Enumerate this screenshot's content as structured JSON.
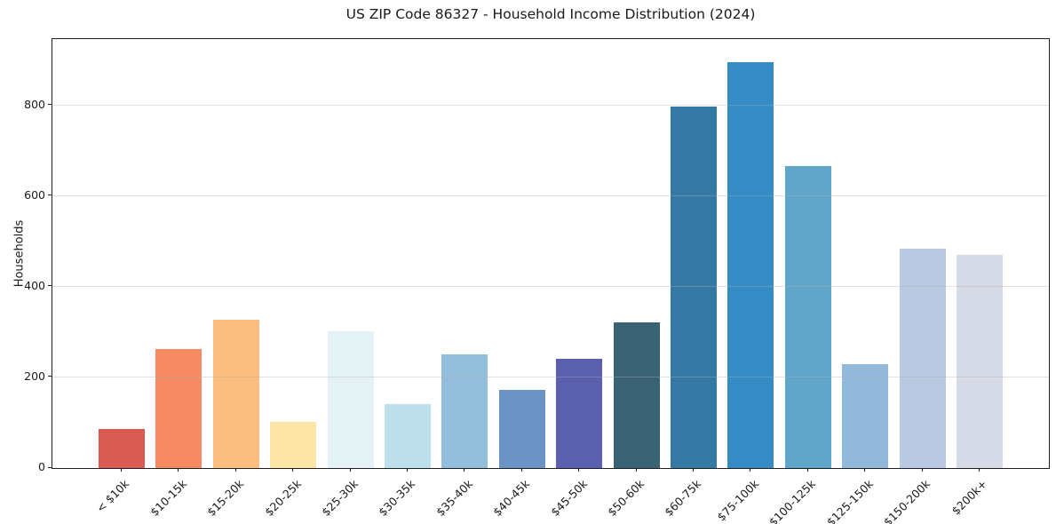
{
  "title": "US ZIP Code 86327 - Household Income Distribution (2024)",
  "chart_data": {
    "type": "bar",
    "title": "US ZIP Code 86327 - Household Income Distribution (2024)",
    "xlabel": "",
    "ylabel": "Households",
    "ylim": [
      0,
      946
    ],
    "yticks": [
      0,
      200,
      400,
      600,
      800
    ],
    "grid": true,
    "legend": "none",
    "categories": [
      "< $10k",
      "$10-15k",
      "$15-20k",
      "$20-25k",
      "$25-30k",
      "$30-35k",
      "$35-40k",
      "$40-45k",
      "$45-50k",
      "$50-60k",
      "$60-75k",
      "$75-100k",
      "$100-125k",
      "$125-150k",
      "$150-200k",
      "$200k+"
    ],
    "values": [
      86,
      262,
      328,
      101,
      302,
      142,
      251,
      173,
      241,
      321,
      798,
      896,
      665,
      230,
      484,
      471
    ],
    "bar_colors": [
      "#d95b52",
      "#f68a63",
      "#fcbd80",
      "#fde5a5",
      "#e4f2f5",
      "#bedfec",
      "#92bedb",
      "#6b93c4",
      "#5a5fae",
      "#3a6275",
      "#347aa5",
      "#358bc4",
      "#60a5ca",
      "#92b9da",
      "#b9c9e2",
      "#d6d9e6"
    ],
    "axis_color": "#1f1f1f",
    "grid_color": "#b0b0b0",
    "background_color": "#ffffff"
  }
}
